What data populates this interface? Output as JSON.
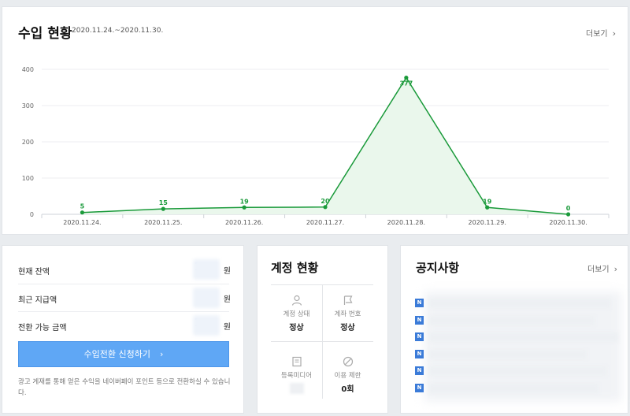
{
  "revenue": {
    "title": "수입 현황",
    "date_range": "2020.11.24.~2020.11.30.",
    "more_label": "더보기"
  },
  "chart_data": {
    "type": "area",
    "categories": [
      "2020.11.24.",
      "2020.11.25.",
      "2020.11.26.",
      "2020.11.27.",
      "2020.11.28.",
      "2020.11.29.",
      "2020.11.30."
    ],
    "values": [
      5,
      15,
      19,
      20,
      377,
      19,
      0
    ],
    "data_labels": [
      "5",
      "15",
      "19",
      "20",
      "377",
      "19",
      "0"
    ],
    "yticks": [
      "0",
      "100",
      "200",
      "300",
      "400"
    ],
    "ylim": [
      0,
      400
    ],
    "grid": true,
    "line_color": "#1a9a3a",
    "fill_color": "#eaf7ec"
  },
  "balance": {
    "rows": [
      {
        "label": "현재 잔액",
        "value": "1",
        "unit": "원"
      },
      {
        "label": "최근 지급액",
        "value": "",
        "unit": "원"
      },
      {
        "label": "전환 가능 금액",
        "value": "1",
        "unit": "원"
      }
    ],
    "apply_button": "수입전환 신청하기",
    "apply_arrow": "›",
    "note": "광고 게재를 통해 얻은 수익을 네이버페이 포인트 등으로 전환하실 수 있습니다."
  },
  "account": {
    "title": "계정 현황",
    "cells": [
      {
        "key": "계정 상태",
        "value": "정상",
        "icon": "person-icon"
      },
      {
        "key": "계좌 번호",
        "value": "정상",
        "icon": "flag-icon"
      },
      {
        "key": "등록미디어",
        "value": "",
        "icon": "document-icon"
      },
      {
        "key": "이용 제한",
        "value": "0회",
        "icon": "block-icon"
      }
    ]
  },
  "notice": {
    "title": "공지사항",
    "more_label": "더보기",
    "badge": "N",
    "item_count": 6
  },
  "colors": {
    "accent_blue": "#5fa7f5",
    "notice_badge": "#3b7bd8",
    "chart_green": "#1a9a3a"
  }
}
